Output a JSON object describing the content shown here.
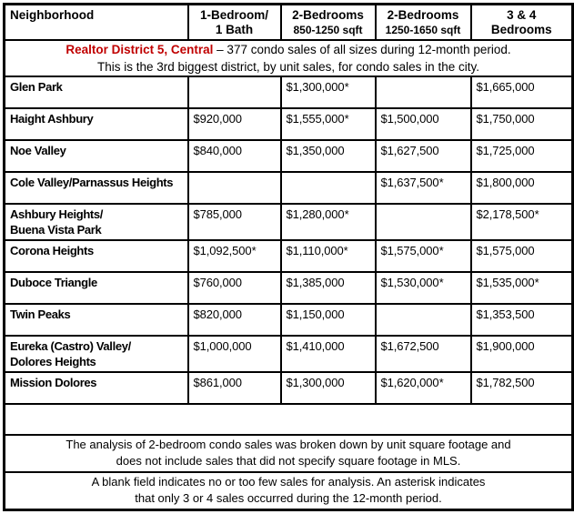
{
  "colors": {
    "accent": "#C00000",
    "border": "#000000",
    "text": "#000000",
    "background": "#ffffff"
  },
  "table": {
    "columns": [
      {
        "label": "Neighborhood",
        "sublabel": ""
      },
      {
        "label": "1-Bedroom/",
        "sublabel": "1 Bath"
      },
      {
        "label": "2-Bedrooms",
        "sublabel": "850-1250 sqft"
      },
      {
        "label": "2-Bedrooms",
        "sublabel": "1250-1650 sqft"
      },
      {
        "label": "3 & 4 Bedrooms",
        "sublabel": ""
      }
    ],
    "district_banner": {
      "title": "Realtor District 5, Central",
      "line1_rest": " – 377 condo sales of all sizes during 12-month period.",
      "line2": "This is the 3rd biggest district, by unit sales, for condo sales in the city."
    },
    "rows": [
      {
        "name": "Glen Park",
        "values": [
          "",
          "$1,300,000*",
          "",
          "$1,665,000"
        ]
      },
      {
        "name": "Haight Ashbury",
        "values": [
          "$920,000",
          "$1,555,000*",
          "$1,500,000",
          "$1,750,000"
        ]
      },
      {
        "name": "Noe Valley",
        "values": [
          "$840,000",
          "$1,350,000",
          "$1,627,500",
          "$1,725,000"
        ]
      },
      {
        "name": "Cole Valley/Parnassus Heights",
        "values": [
          "",
          "",
          "$1,637,500*",
          "$1,800,000"
        ]
      },
      {
        "name": "Ashbury Heights/\nBuena Vista Park",
        "values": [
          "$785,000",
          "$1,280,000*",
          "",
          "$2,178,500*"
        ]
      },
      {
        "name": "Corona Heights",
        "values": [
          "$1,092,500*",
          "$1,110,000*",
          "$1,575,000*",
          "$1,575,000"
        ]
      },
      {
        "name": "Duboce Triangle",
        "values": [
          "$760,000",
          "$1,385,000",
          "$1,530,000*",
          "$1,535,000*"
        ]
      },
      {
        "name": "Twin Peaks",
        "values": [
          "$820,000",
          "$1,150,000",
          "",
          "$1,353,500"
        ]
      },
      {
        "name": "Eureka (Castro) Valley/\nDolores Heights",
        "values": [
          "$1,000,000",
          "$1,410,000",
          "$1,672,500",
          "$1,900,000"
        ]
      },
      {
        "name": "Mission Dolores",
        "values": [
          "$861,000",
          "$1,300,000",
          "$1,620,000*",
          "$1,782,500"
        ]
      }
    ],
    "notes": [
      "The analysis of 2-bedroom condo sales was broken down by unit square footage and\ndoes not include sales that did not specify square footage in MLS.",
      "A blank field indicates no or too few sales for analysis. An asterisk indicates\nthat only 3 or 4 sales occurred during the 12-month period."
    ]
  }
}
